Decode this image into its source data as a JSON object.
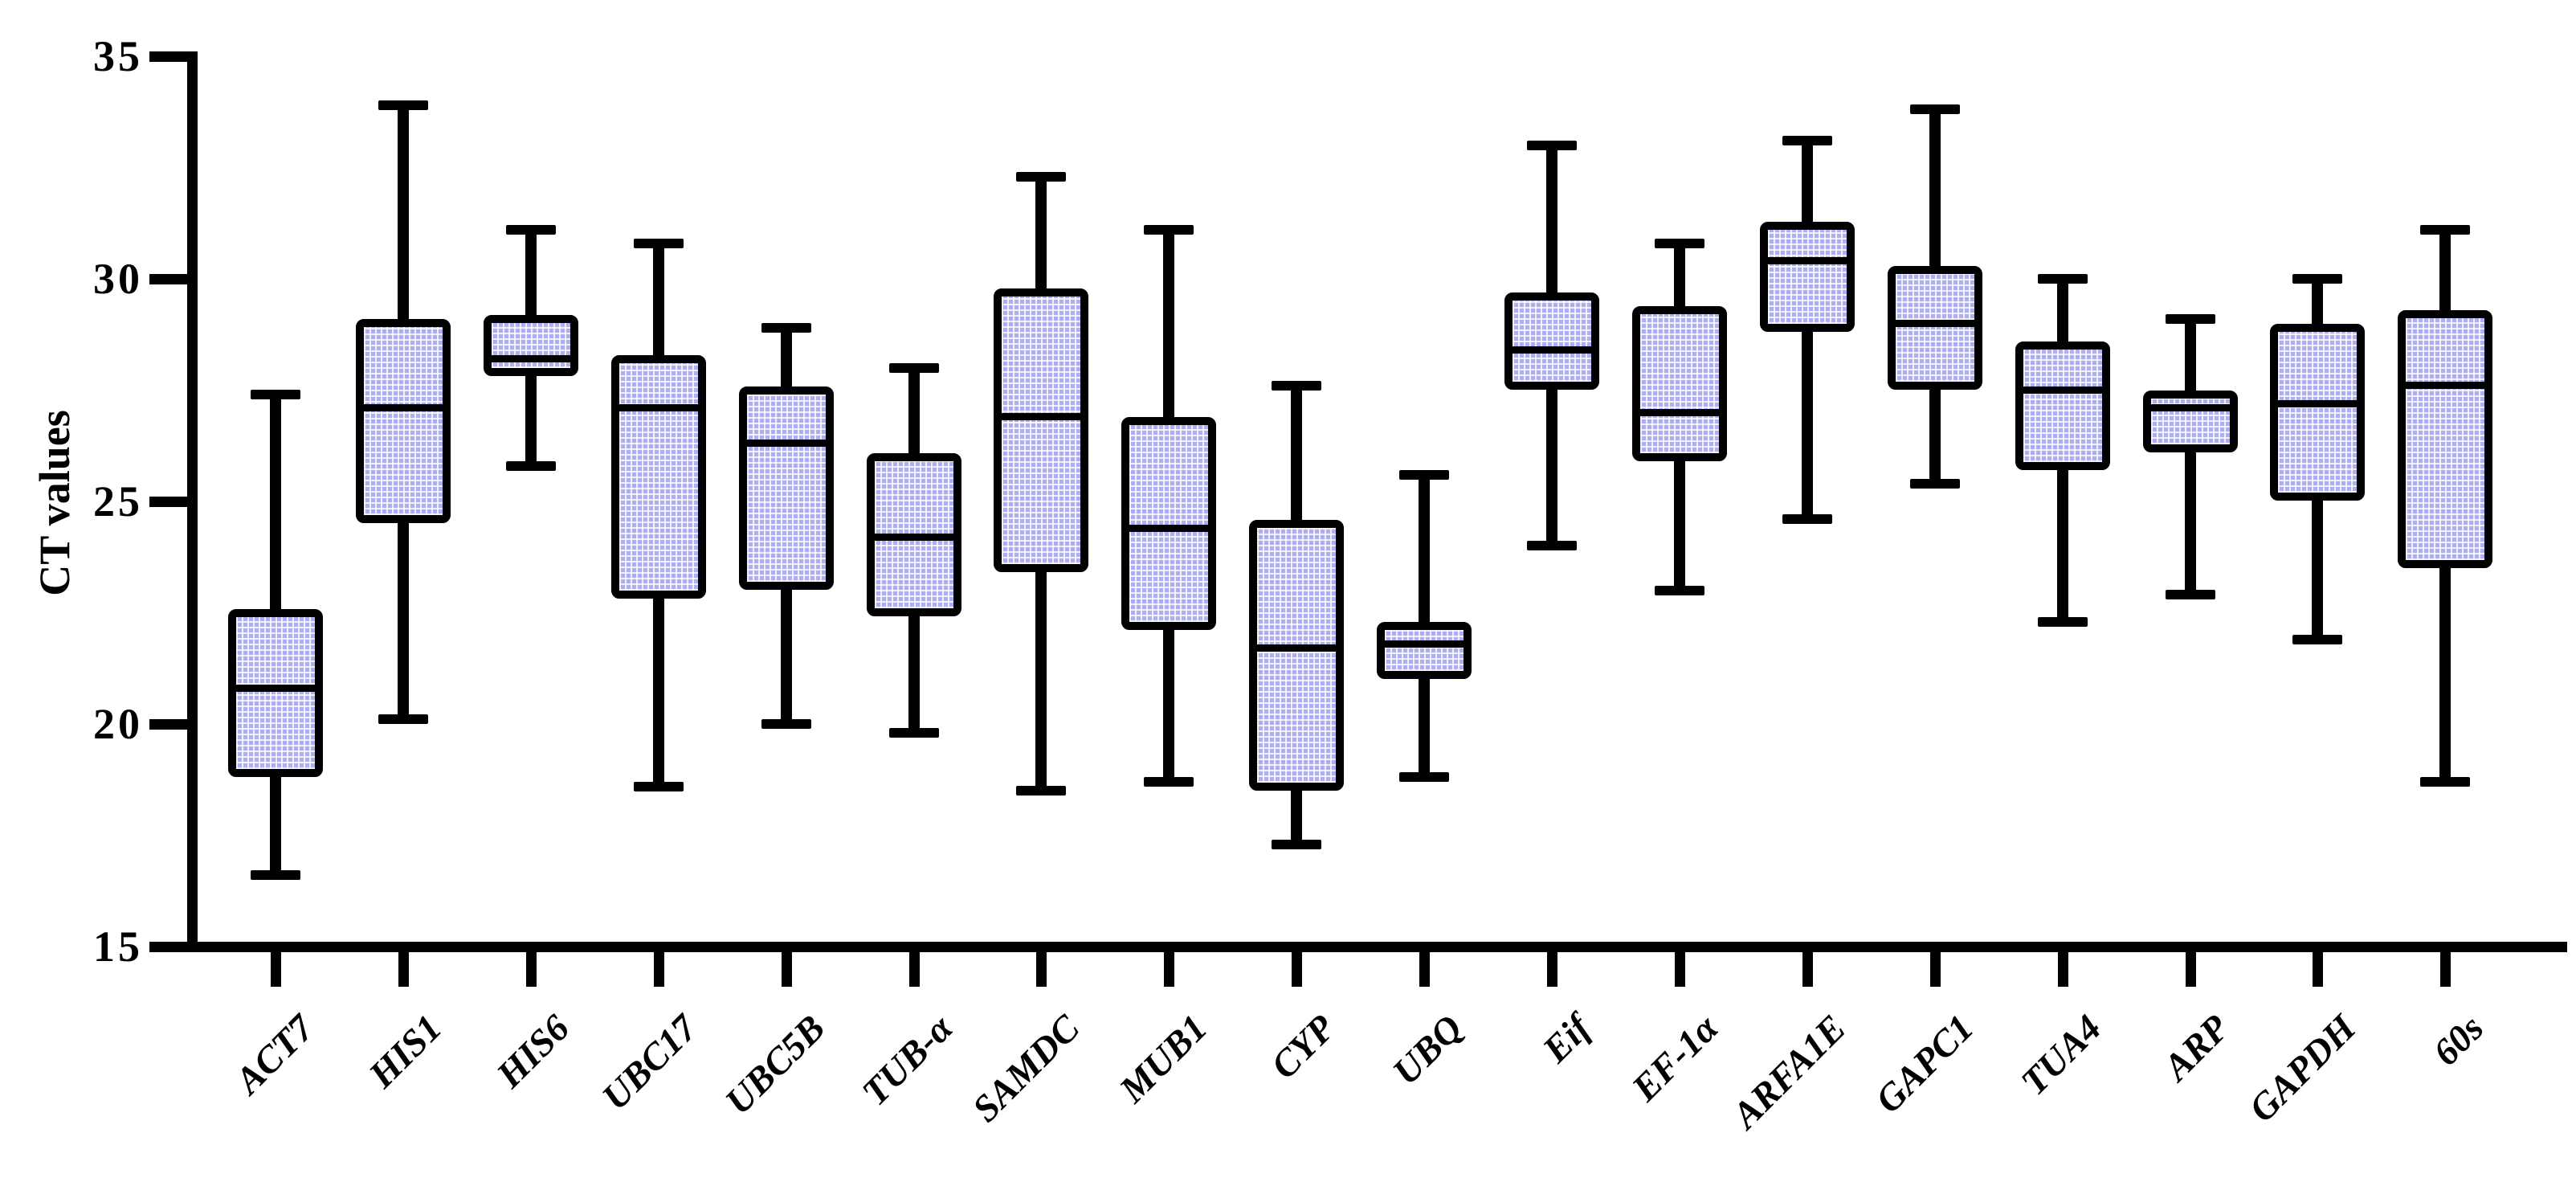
{
  "chart_data": {
    "type": "boxplot",
    "title": "",
    "ylabel": "CT values",
    "xlabel": "",
    "ylim": [
      15,
      35
    ],
    "yticks": [
      15,
      20,
      25,
      30,
      35
    ],
    "grid": false,
    "legend": null,
    "colors": {
      "background": "#ffffff",
      "stroke": "#000000",
      "box_fill": "#aeaef2",
      "box_pattern_lines": "#ffffff"
    },
    "categories": [
      "ACT7",
      "HIS1",
      "HIS6",
      "UBC17",
      "UBC5B",
      "TUB-α",
      "SAMDC",
      "MUB1",
      "CYP",
      "UBQ",
      "Eif",
      "EF-1α",
      "ARFA1E",
      "GAPC1",
      "TUA4",
      "ARP",
      "GAPDH",
      "60s"
    ],
    "series": [
      {
        "name": "CT values",
        "boxes": [
          {
            "category": "ACT7",
            "min": 16.6,
            "q1": 18.9,
            "median": 20.8,
            "q3": 22.5,
            "max": 27.4
          },
          {
            "category": "HIS1",
            "min": 20.1,
            "q1": 24.6,
            "median": 27.1,
            "q3": 29.0,
            "max": 33.9
          },
          {
            "category": "HIS6",
            "min": 25.8,
            "q1": 27.9,
            "median": 28.2,
            "q3": 29.1,
            "max": 31.1
          },
          {
            "category": "UBC17",
            "min": 18.6,
            "q1": 22.9,
            "median": 27.1,
            "q3": 28.2,
            "max": 30.8
          },
          {
            "category": "UBC5B",
            "min": 20.0,
            "q1": 23.1,
            "median": 26.3,
            "q3": 27.5,
            "max": 28.9
          },
          {
            "category": "TUB-α",
            "min": 19.8,
            "q1": 22.5,
            "median": 24.2,
            "q3": 26.0,
            "max": 28.0
          },
          {
            "category": "SAMDC",
            "min": 18.5,
            "q1": 23.5,
            "median": 26.9,
            "q3": 29.7,
            "max": 32.3
          },
          {
            "category": "MUB1",
            "min": 18.7,
            "q1": 22.2,
            "median": 24.4,
            "q3": 26.8,
            "max": 31.1
          },
          {
            "category": "CYP",
            "min": 17.3,
            "q1": 18.6,
            "median": 21.7,
            "q3": 24.5,
            "max": 27.6
          },
          {
            "category": "UBQ",
            "min": 18.8,
            "q1": 21.1,
            "median": 21.8,
            "q3": 22.2,
            "max": 25.6
          },
          {
            "category": "Eif",
            "min": 24.0,
            "q1": 27.6,
            "median": 28.4,
            "q3": 29.6,
            "max": 33.0
          },
          {
            "category": "EF-1α",
            "min": 23.0,
            "q1": 26.0,
            "median": 27.0,
            "q3": 29.3,
            "max": 30.8
          },
          {
            "category": "ARFA1E",
            "min": 24.6,
            "q1": 28.9,
            "median": 30.4,
            "q3": 31.2,
            "max": 33.1
          },
          {
            "category": "GAPC1",
            "min": 25.4,
            "q1": 27.6,
            "median": 29.0,
            "q3": 30.2,
            "max": 33.8
          },
          {
            "category": "TUA4",
            "min": 22.3,
            "q1": 25.8,
            "median": 27.5,
            "q3": 28.5,
            "max": 30.0
          },
          {
            "category": "ARP",
            "min": 22.9,
            "q1": 26.2,
            "median": 27.1,
            "q3": 27.4,
            "max": 29.1
          },
          {
            "category": "GAPDH",
            "min": 21.9,
            "q1": 25.1,
            "median": 27.2,
            "q3": 28.9,
            "max": 30.0
          },
          {
            "category": "60s",
            "min": 18.7,
            "q1": 23.6,
            "median": 27.6,
            "q3": 29.2,
            "max": 31.1
          }
        ]
      }
    ]
  }
}
